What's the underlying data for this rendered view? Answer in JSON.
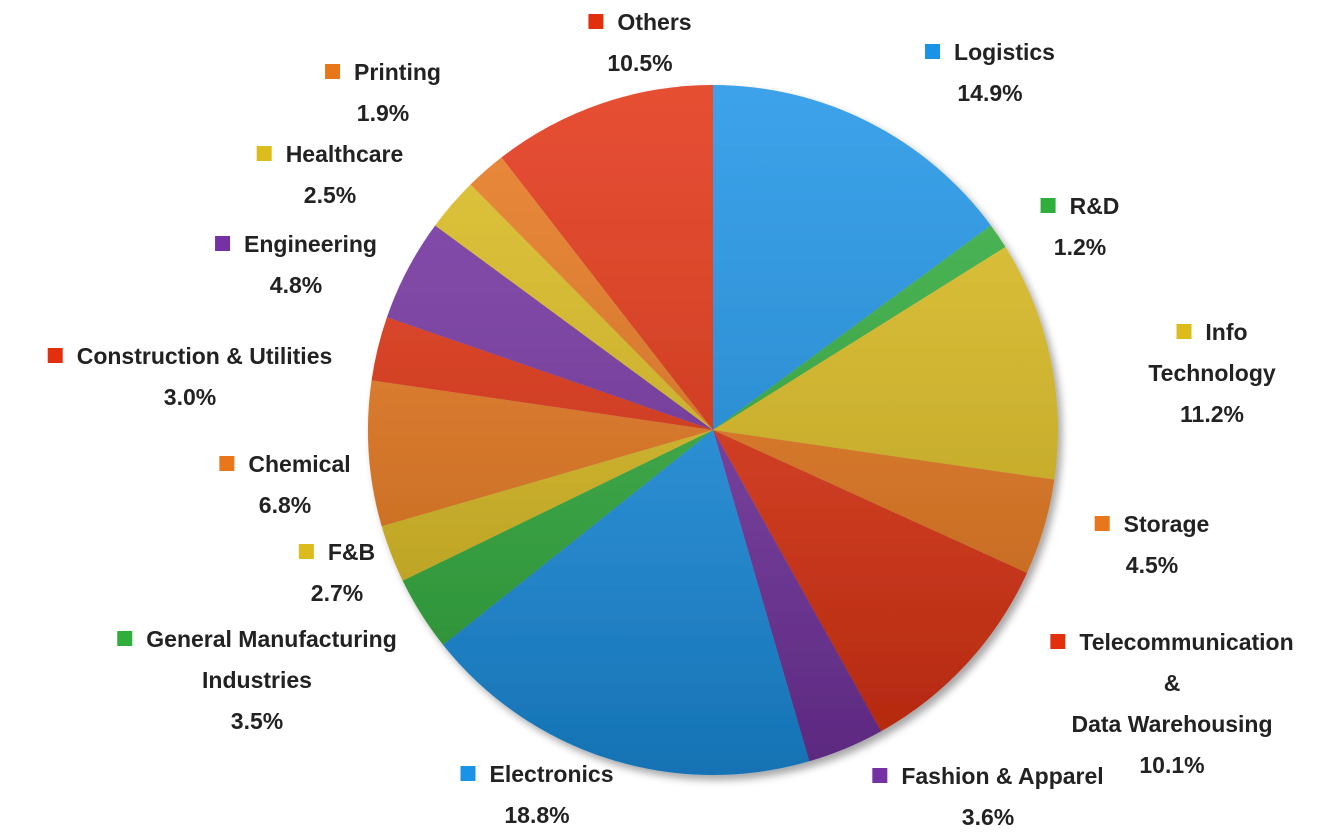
{
  "chart_data": {
    "type": "pie",
    "categories": [
      "Logistics",
      "R&D",
      "Info Technology",
      "Storage",
      "Telecommunication &\nData Warehousing",
      "Fashion & Apparel",
      "Electronics",
      "General Manufacturing\nIndustries",
      "F&B",
      "Chemical",
      "Construction & Utilities",
      "Engineering",
      "Healthcare",
      "Printing",
      "Others"
    ],
    "values": [
      14.9,
      1.2,
      11.2,
      4.5,
      10.1,
      3.6,
      18.8,
      3.5,
      2.7,
      6.8,
      3.0,
      4.8,
      2.5,
      1.9,
      10.5
    ],
    "value_labels": [
      "14.9%",
      "1.2%",
      "11.2%",
      "4.5%",
      "10.1%",
      "3.6%",
      "18.8%",
      "3.5%",
      "2.7%",
      "6.8%",
      "3.0%",
      "4.8%",
      "2.5%",
      "1.9%",
      "10.5%"
    ],
    "colors": [
      "#1a92e6",
      "#2fae3c",
      "#dcbc1c",
      "#e8761a",
      "#e2300f",
      "#7432a2",
      "#1a92e6",
      "#2fae3c",
      "#dcbc1c",
      "#e8761a",
      "#e2300f",
      "#7432a2",
      "#dcbc1c",
      "#e8761a",
      "#e2300f"
    ]
  }
}
